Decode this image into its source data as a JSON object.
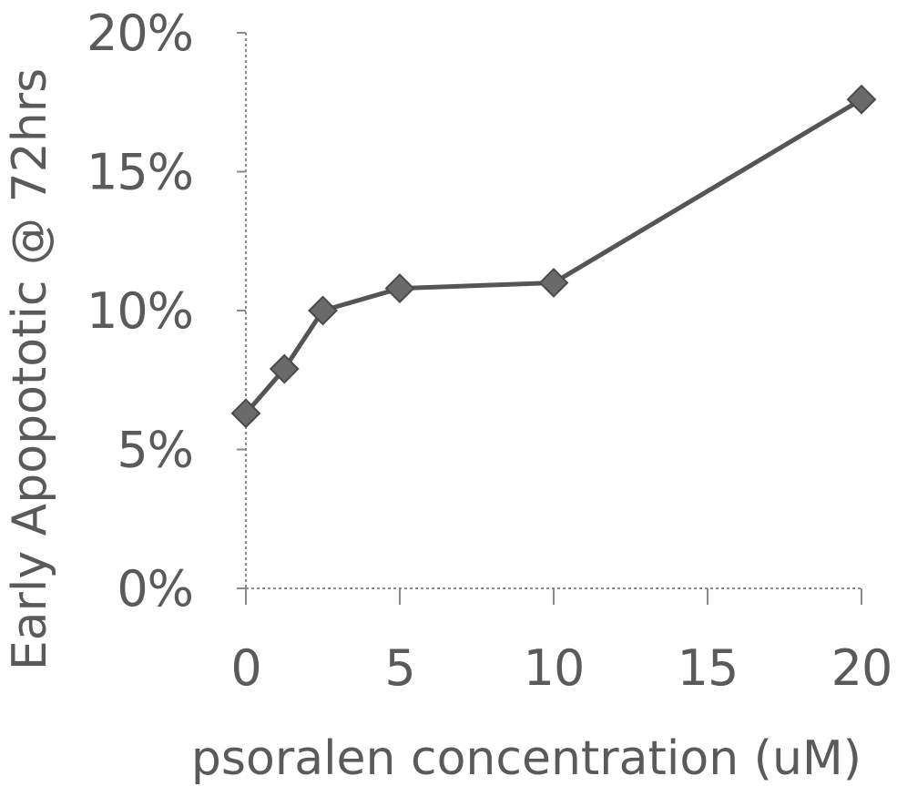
{
  "chart_data": {
    "type": "line",
    "title": "",
    "xlabel": "psoralen concentration (uM)",
    "ylabel": "Early Apopototic @ 72hrs",
    "xlim": [
      0,
      20
    ],
    "ylim": [
      0,
      20
    ],
    "x_ticks": [
      0,
      5,
      10,
      15,
      20
    ],
    "x_tick_labels": [
      "0",
      "5",
      "10",
      "15",
      "20"
    ],
    "y_ticks": [
      0,
      5,
      10,
      15,
      20
    ],
    "y_tick_labels": [
      "0%",
      "5%",
      "10%",
      "15%",
      "20%"
    ],
    "grid": false,
    "legend": "none",
    "marker": "diamond",
    "series": [
      {
        "x": [
          0,
          1.25,
          2.5,
          5,
          10,
          20
        ],
        "y": [
          6.3,
          7.9,
          10.0,
          10.8,
          11.0,
          17.6
        ]
      }
    ]
  }
}
